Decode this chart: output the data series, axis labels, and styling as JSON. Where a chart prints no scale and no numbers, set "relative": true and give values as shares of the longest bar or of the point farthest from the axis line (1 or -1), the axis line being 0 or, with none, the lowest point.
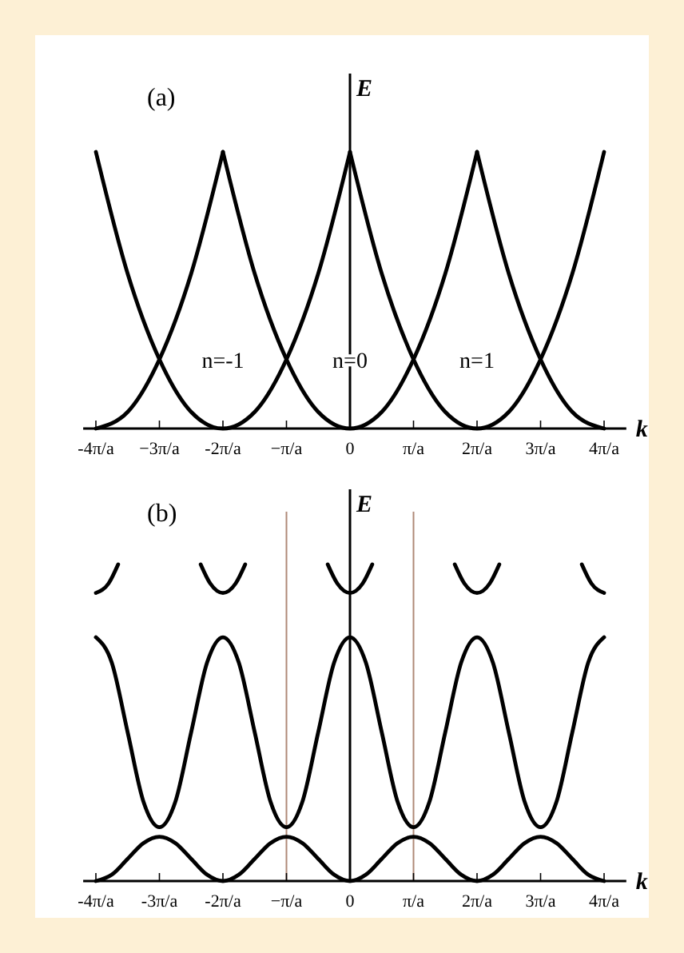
{
  "chart_data": [
    {
      "type": "line",
      "title": "(a)",
      "xlabel": "k",
      "ylabel": "E",
      "relative": true,
      "xlim": [
        -4.2,
        4.35
      ],
      "tick_labels": "x",
      "xticks": [
        {
          "value": -4,
          "label": "-4π/a"
        },
        {
          "value": -3,
          "label": "−3π/a"
        },
        {
          "value": -2,
          "label": "-2π/a"
        },
        {
          "value": -1,
          "label": "−π/a"
        },
        0,
        {
          "value": 1,
          "label": "π/a"
        },
        {
          "value": 2,
          "label": "2π/a"
        },
        {
          "value": 3,
          "label": "3π/a"
        },
        {
          "value": 4,
          "label": "4π/a"
        }
      ],
      "series": [
        {
          "color": "#000000",
          "x": [
            -4,
            -3.5,
            -3,
            -2.5,
            -2
          ],
          "values": [
            0,
            0.06,
            0.25,
            0.56,
            1
          ]
        },
        {
          "color": "#000000",
          "x": [
            -4,
            -3.5,
            -3,
            -2.5,
            -2,
            -1.5,
            -1,
            -0.5,
            0
          ],
          "values": [
            1,
            0.56,
            0.25,
            0.06,
            0,
            0.06,
            0.25,
            0.56,
            1
          ]
        },
        {
          "color": "#000000",
          "x": [
            -2,
            -1.5,
            -1,
            -0.5,
            0,
            0.5,
            1,
            1.5,
            2
          ],
          "values": [
            1,
            0.56,
            0.25,
            0.06,
            0,
            0.06,
            0.25,
            0.56,
            1
          ]
        },
        {
          "color": "#000000",
          "x": [
            0,
            0.5,
            1,
            1.5,
            2,
            2.5,
            3,
            3.5,
            4
          ],
          "values": [
            1,
            0.56,
            0.25,
            0.06,
            0,
            0.06,
            0.25,
            0.56,
            1
          ]
        },
        {
          "color": "#000000",
          "x": [
            2,
            2.5,
            3,
            3.5,
            4
          ],
          "values": [
            1,
            0.56,
            0.25,
            0.06,
            0
          ]
        }
      ],
      "annotations": [
        "n=-1",
        "n=0",
        "n=1"
      ]
    },
    {
      "type": "line",
      "title": "(b)",
      "xlabel": "k",
      "ylabel": "E",
      "relative": true,
      "xlim": [
        -4.2,
        4.35
      ],
      "tick_labels": "x",
      "xticks": [
        {
          "value": -4,
          "label": "-4π/a"
        },
        {
          "value": -3,
          "label": "-3π/a"
        },
        {
          "value": -2,
          "label": "-2π/a"
        },
        {
          "value": -1,
          "label": "−π/a"
        },
        0,
        {
          "value": 1,
          "label": "π/a"
        },
        {
          "value": 2,
          "label": "2π/a"
        },
        {
          "value": 3,
          "label": "3π/a"
        },
        {
          "value": 4,
          "label": "4π/a"
        }
      ],
      "series": [
        {
          "color": "#000000",
          "x": [
            -4,
            -3.75,
            -3.5,
            -3.25,
            -3,
            -2.75,
            -2.5,
            -2.25,
            -2,
            -1.75,
            -1.5,
            -1.25,
            -1,
            -0.75,
            -0.5,
            -0.25,
            0,
            0.25,
            0.5,
            0.75,
            1,
            1.25,
            1.5,
            1.75,
            2,
            2.25,
            2.5,
            2.75,
            3,
            3.25,
            3.5,
            3.75,
            4
          ],
          "values": [
            0,
            0.02,
            0.07,
            0.12,
            0.14,
            0.12,
            0.07,
            0.02,
            0,
            0.02,
            0.07,
            0.12,
            0.14,
            0.12,
            0.07,
            0.02,
            0,
            0.02,
            0.07,
            0.12,
            0.14,
            0.12,
            0.07,
            0.02,
            0,
            0.02,
            0.07,
            0.12,
            0.14,
            0.12,
            0.07,
            0.02,
            0
          ]
        },
        {
          "color": "#000000",
          "x": [
            -4,
            -3.75,
            -3.5,
            -3.25,
            -3,
            -2.75,
            -2.5,
            -2.25,
            -2,
            -1.75,
            -1.5,
            -1.25,
            -1,
            -0.75,
            -0.5,
            -0.25,
            0,
            0.25,
            0.5,
            0.75,
            1,
            1.25,
            1.5,
            1.75,
            2,
            2.25,
            2.5,
            2.75,
            3,
            3.25,
            3.5,
            3.75,
            4
          ],
          "values": [
            0.77,
            0.69,
            0.47,
            0.25,
            0.17,
            0.25,
            0.47,
            0.69,
            0.77,
            0.69,
            0.47,
            0.25,
            0.17,
            0.25,
            0.47,
            0.69,
            0.77,
            0.69,
            0.47,
            0.25,
            0.17,
            0.25,
            0.47,
            0.69,
            0.77,
            0.69,
            0.47,
            0.25,
            0.17,
            0.25,
            0.47,
            0.69,
            0.77
          ]
        },
        {
          "color": "#000000",
          "x": [
            -4,
            -3.8,
            -3.65
          ],
          "values": [
            0.91,
            0.94,
            1
          ]
        },
        {
          "color": "#000000",
          "x": [
            -2.35,
            -2.2,
            -2,
            -1.8,
            -1.65
          ],
          "values": [
            1,
            0.94,
            0.91,
            0.94,
            1
          ]
        },
        {
          "color": "#000000",
          "x": [
            -0.35,
            -0.2,
            0,
            0.2,
            0.35
          ],
          "values": [
            1,
            0.94,
            0.91,
            0.94,
            1
          ]
        },
        {
          "color": "#000000",
          "x": [
            1.65,
            1.8,
            2,
            2.2,
            2.35
          ],
          "values": [
            1,
            0.94,
            0.91,
            0.94,
            1
          ]
        },
        {
          "color": "#000000",
          "x": [
            3.65,
            3.8,
            4
          ],
          "values": [
            1,
            0.94,
            0.91
          ]
        }
      ],
      "ref_lines": [
        {
          "axis": "x",
          "value": -1,
          "color": "#b08a78"
        },
        {
          "axis": "x",
          "value": 1,
          "color": "#b08a78"
        }
      ]
    }
  ]
}
